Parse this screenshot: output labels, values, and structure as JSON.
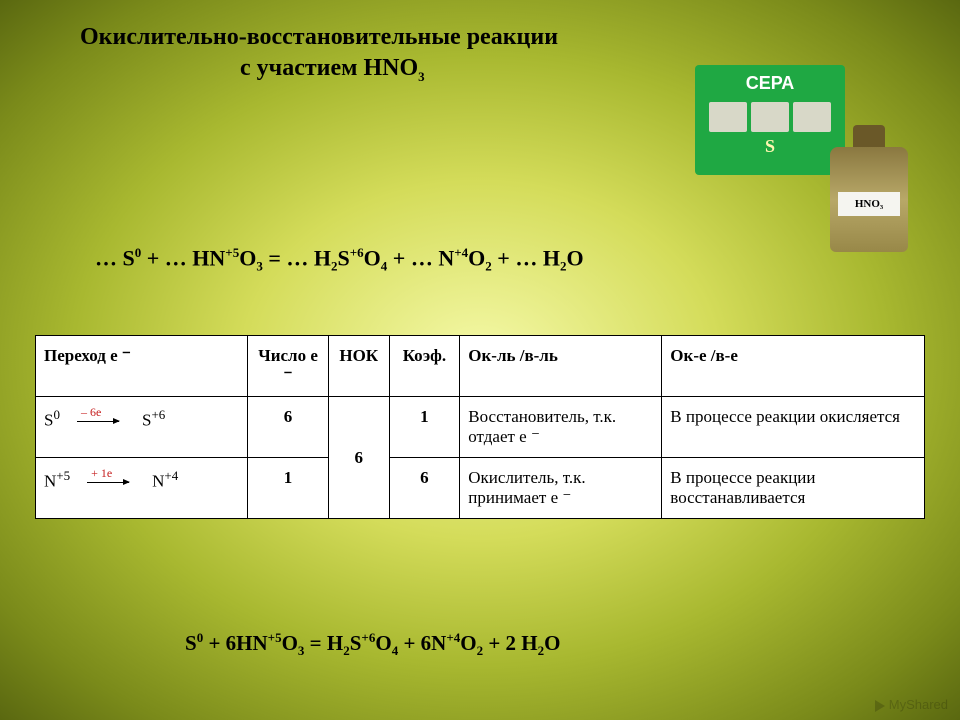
{
  "title": {
    "line1": "Окислительно-восстановительные  реакции",
    "line2": "с участием HNO",
    "sub": "3"
  },
  "sera": {
    "label": "СЕРА",
    "symbol": "S"
  },
  "bottle": {
    "label": "HNO₃"
  },
  "equation": {
    "prefix1": "… S",
    "s_sup": "0",
    "plus1": " + … HN",
    "n_sup": "+5",
    "o3": "O",
    "o3_sub": "3",
    "eq": "  =  … H",
    "h2_sub": "2",
    "s2": "S",
    "s2_sup": "+6",
    "o4": "O",
    "o4_sub": "4",
    "plus2": " + … N",
    "n2_sup": "+4",
    "o2": "O",
    "o2_sub": "2",
    "plus3": " + … H",
    "h2o_sub": "2",
    "h2o_o": "O"
  },
  "table": {
    "headers": {
      "transition": "Переход  e ⁻",
      "num": "Число e ⁻",
      "nok": "НОК",
      "coef": "Коэф.",
      "role": "Ок-ль /в-ль",
      "process": "Ок-е /в-е"
    },
    "row1": {
      "from": "S",
      "from_sup": "0",
      "arrow_label": "– 6e",
      "to": "S",
      "to_sup": "+6",
      "num": "6",
      "coef": "1",
      "role": "Восстановитель, т.к. отдает e ⁻",
      "process": "В процессе реакции окисляется"
    },
    "nok": "6",
    "row2": {
      "from": "N",
      "from_sup": "+5",
      "arrow_label": "+ 1e",
      "to": "N",
      "to_sup": "+4",
      "num": "1",
      "coef": "6",
      "role": "Окислитель, т.к. принимает e ⁻",
      "process": "В процессе реакции восстанавливается"
    }
  },
  "final": {
    "t1": "S",
    "s0": "0",
    "t2": " + 6HN",
    "n5": "+5",
    "t3": "O",
    "o3": "3",
    "t4": " = H",
    "h2": "2",
    "t5": "S",
    "s6": "+6",
    "t6": "O",
    "o4": "4",
    "t7": " + 6N",
    "n4": "+4",
    "t8": "O",
    "o2": "2",
    "t9": " + 2 H",
    "h2o": "2",
    "t10": "O"
  },
  "logo": "MyShared"
}
